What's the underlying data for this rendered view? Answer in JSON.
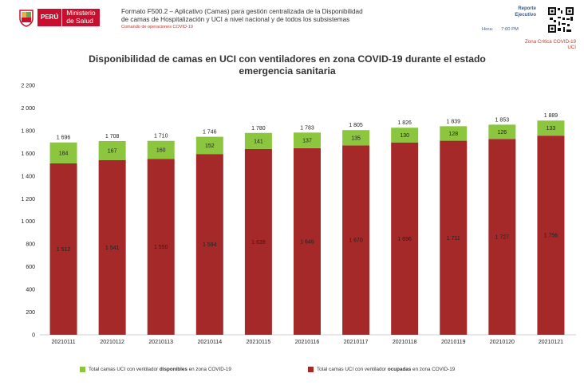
{
  "header": {
    "peru_label": "PERÚ",
    "ministry_line1": "Ministerio",
    "ministry_line2": "de Salud",
    "format_line1": "Formato  F500.2 – Aplicativo (Camas) para gestión centralizada de la Disponibilidad",
    "format_line2": "de camas de Hospitalización y UCI a nivel nacional y de todos los subsistemas",
    "command_line": "Comando de operaciones COVID-19",
    "report_line1": "Reporte",
    "report_line2": "Ejecutivo",
    "hora_label": "Hora:",
    "hora_value": "7:00 PM",
    "zone_line1": "Zona Crítica COVID-19",
    "zone_line2": "UCI"
  },
  "colors": {
    "available": "#8cc63f",
    "occupied": "#a6292a",
    "brand": "#c8102e"
  },
  "chart_data": {
    "type": "bar",
    "stacked": true,
    "title_line1": "Disponibilidad de camas en UCI con ventiladores en zona COVID-19 durante el estado",
    "title_line2": "emergencia sanitaria",
    "categories": [
      "20210111",
      "20210112",
      "20210113",
      "20210114",
      "20210115",
      "20210116",
      "20210117",
      "20210118",
      "20210119",
      "20210120",
      "20210121"
    ],
    "series": [
      {
        "name": "Total camas UCI con ventilador ocupadas en zona COVID-19",
        "values": [
          1512,
          1541,
          1550,
          1594,
          1639,
          1646,
          1670,
          1696,
          1711,
          1727,
          1756
        ]
      },
      {
        "name": "Total camas UCI con ventilador disponibles en zona COVID-19",
        "values": [
          184,
          167,
          160,
          152,
          141,
          137,
          135,
          130,
          128,
          126,
          133
        ]
      }
    ],
    "totals": [
      1696,
      1708,
      1710,
      1746,
      1780,
      1783,
      1805,
      1826,
      1839,
      1853,
      1889
    ],
    "total_labels": [
      "1 696",
      "1 708",
      "1 710",
      "1 746",
      "1 780",
      "1 783",
      "1 805",
      "1 826",
      "1 839",
      "1 853",
      "1 889"
    ],
    "occupied_labels": [
      "1 512",
      "1 541",
      "1 550",
      "1 594",
      "1 639",
      "1 646",
      "1 670",
      "1 696",
      "1 711",
      "1 727",
      "1 756"
    ],
    "available_labels": [
      "184",
      "167",
      "160",
      "152",
      "141",
      "137",
      "135",
      "130",
      "128",
      "126",
      "133"
    ],
    "ylim": [
      0,
      2200
    ],
    "yticks": [
      0,
      200,
      400,
      600,
      800,
      1000,
      1200,
      1400,
      1600,
      1800,
      2000,
      2200
    ],
    "ytick_labels": [
      "0",
      "200",
      "400",
      "600",
      "800",
      "1 000",
      "1 200",
      "1 400",
      "1 600",
      "1 800",
      "2 000",
      "2 200"
    ],
    "legend": {
      "available_prefix": "Total camas UCI con ventilador ",
      "available_bold": "disponibles",
      "available_suffix": " en zona COVID-19",
      "occupied_prefix": "Total camas UCI con ventilador ",
      "occupied_bold": "ocupadas",
      "occupied_suffix": " en zona COVID-19"
    }
  }
}
